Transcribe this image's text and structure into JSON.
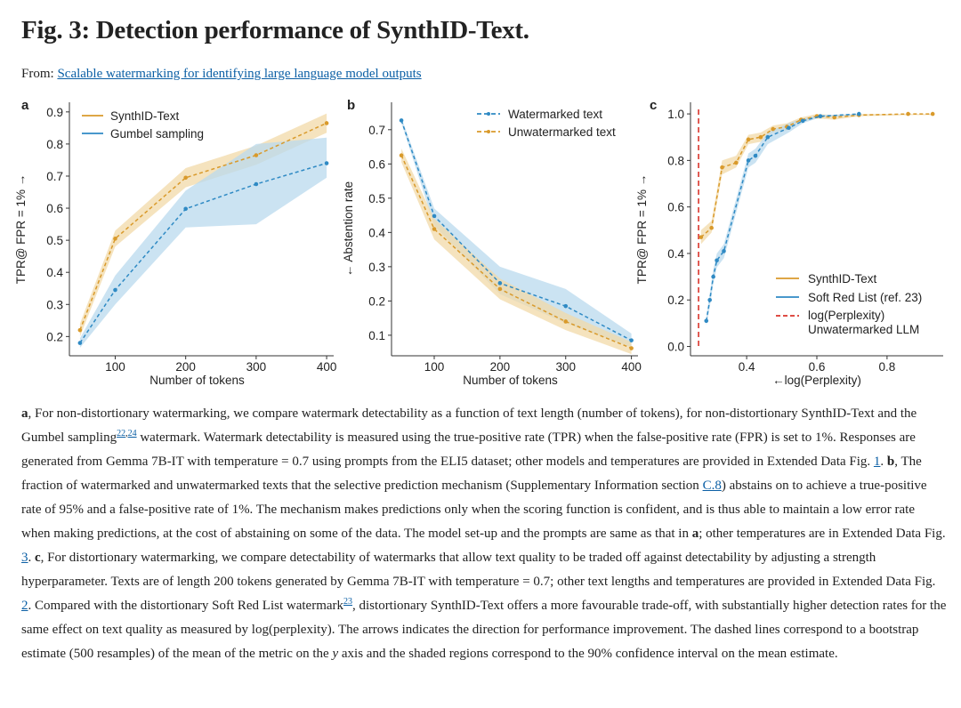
{
  "title": "Fig. 3: Detection performance of SynthID-Text.",
  "from": {
    "label": "From:",
    "link_text": "Scalable watermarking for identifying large language model outputs"
  },
  "colors": {
    "orange": "#d99a2b",
    "blue": "#2f8ac4",
    "orange_band": "#f2d9a8",
    "blue_band": "#b9d9ee",
    "red": "#d9342b",
    "link": "#0b5fa5"
  },
  "chart_data": [
    {
      "panel": "a",
      "type": "line",
      "xlabel": "Number of tokens",
      "ylabel": "TPR@ FPR = 1% →",
      "xlim": [
        35,
        410
      ],
      "ylim": [
        0.14,
        0.93
      ],
      "xticks": [
        100,
        200,
        300,
        400
      ],
      "yticks": [
        0.2,
        0.3,
        0.4,
        0.5,
        0.6,
        0.7,
        0.8,
        0.9
      ],
      "legend_position": "top-left",
      "series": [
        {
          "name": "SynthID-Text",
          "color": "orange",
          "x": [
            50,
            100,
            200,
            300,
            400
          ],
          "y": [
            0.22,
            0.505,
            0.695,
            0.765,
            0.865
          ],
          "lo": [
            0.2,
            0.48,
            0.665,
            0.735,
            0.835
          ],
          "hi": [
            0.24,
            0.53,
            0.725,
            0.795,
            0.895
          ]
        },
        {
          "name": "Gumbel sampling",
          "color": "blue",
          "x": [
            50,
            100,
            200,
            300,
            400
          ],
          "y": [
            0.18,
            0.345,
            0.598,
            0.675,
            0.74
          ],
          "lo": [
            0.165,
            0.3,
            0.54,
            0.55,
            0.695
          ],
          "hi": [
            0.195,
            0.39,
            0.655,
            0.8,
            0.82
          ]
        }
      ]
    },
    {
      "panel": "b",
      "type": "line",
      "xlabel": "Number of tokens",
      "ylabel": "← Abstention rate",
      "xlim": [
        35,
        410
      ],
      "ylim": [
        0.04,
        0.78
      ],
      "xticks": [
        100,
        200,
        300,
        400
      ],
      "yticks": [
        0.1,
        0.2,
        0.3,
        0.4,
        0.5,
        0.6,
        0.7
      ],
      "legend_position": "top-right",
      "series": [
        {
          "name": "Watermarked text",
          "color": "blue",
          "x": [
            50,
            100,
            200,
            300,
            400
          ],
          "y": [
            0.727,
            0.448,
            0.252,
            0.185,
            0.085
          ],
          "lo": [
            0.72,
            0.42,
            0.22,
            0.135,
            0.065
          ],
          "hi": [
            0.735,
            0.47,
            0.3,
            0.235,
            0.105
          ]
        },
        {
          "name": "Unwatermarked text",
          "color": "orange",
          "x": [
            50,
            100,
            200,
            300,
            400
          ],
          "y": [
            0.625,
            0.41,
            0.235,
            0.14,
            0.062
          ],
          "lo": [
            0.605,
            0.38,
            0.205,
            0.115,
            0.045
          ],
          "hi": [
            0.645,
            0.44,
            0.265,
            0.165,
            0.08
          ]
        }
      ]
    },
    {
      "panel": "c",
      "type": "line",
      "xlabel": "←log(Perplexity)",
      "ylabel": "TPR@ FPR = 1% →",
      "xlim": [
        0.24,
        0.96
      ],
      "ylim": [
        -0.04,
        1.05
      ],
      "xticks": [
        0.4,
        0.6,
        0.8
      ],
      "yticks": [
        0.0,
        0.2,
        0.4,
        0.6,
        0.8,
        1.0
      ],
      "legend_position": "bottom-right",
      "series": [
        {
          "name": "SynthID-Text",
          "color": "orange",
          "x": [
            0.27,
            0.3,
            0.33,
            0.37,
            0.405,
            0.44,
            0.475,
            0.515,
            0.555,
            0.6,
            0.65,
            0.72,
            0.86,
            0.93
          ],
          "y": [
            0.47,
            0.51,
            0.77,
            0.79,
            0.89,
            0.9,
            0.935,
            0.945,
            0.975,
            0.99,
            0.985,
            0.995,
            1.0,
            1.0
          ],
          "lo": [
            0.44,
            0.49,
            0.74,
            0.77,
            0.87,
            0.88,
            0.92,
            0.93,
            0.965,
            0.98,
            0.975,
            0.99,
            0.995,
            0.995
          ],
          "hi": [
            0.5,
            0.54,
            0.8,
            0.82,
            0.91,
            0.92,
            0.95,
            0.96,
            0.985,
            1.0,
            0.995,
            1.0,
            1.0,
            1.0
          ]
        },
        {
          "name": "Soft Red List (ref. 23)",
          "color": "blue",
          "x": [
            0.285,
            0.295,
            0.305,
            0.315,
            0.335,
            0.405,
            0.425,
            0.46,
            0.52,
            0.56,
            0.61,
            0.72
          ],
          "y": [
            0.11,
            0.2,
            0.3,
            0.37,
            0.41,
            0.8,
            0.82,
            0.9,
            0.94,
            0.97,
            0.99,
            1.0
          ],
          "lo": [
            0.09,
            0.17,
            0.27,
            0.34,
            0.38,
            0.77,
            0.79,
            0.87,
            0.92,
            0.96,
            0.985,
            0.995
          ],
          "hi": [
            0.13,
            0.23,
            0.33,
            0.4,
            0.44,
            0.83,
            0.85,
            0.92,
            0.96,
            0.98,
            0.995,
            1.0
          ]
        }
      ],
      "reference_line": {
        "name": "log(Perplexity) Unwatermarked LLM",
        "x": 0.263,
        "color": "red",
        "style": "dashed"
      }
    }
  ],
  "panel_labels": [
    "a",
    "b",
    "c"
  ],
  "caption_html": "<b>a</b>, For non-distortionary watermarking, we compare watermark detectability as a function of text length (number of tokens), for non-distortionary SynthID-Text and the Gumbel sampling<sup><a>22</a>,<a>24</a></sup> watermark. Watermark detectability is measured using the true-positive rate (TPR) when the false-positive rate (FPR) is set to 1%. Responses are generated from Gemma 7B-IT with temperature = 0.7 using prompts from the ELI5 dataset; other models and temperatures are provided in Extended Data Fig. <a>1</a>. <b>b</b>, The fraction of watermarked and unwatermarked texts that the selective prediction mechanism (Supplementary Information section <a>C.8</a>) abstains on to achieve a true-positive rate of 95% and a false-positive rate of 1%. The mechanism makes predictions only when the scoring function is confident, and is thus able to maintain a low error rate when making predictions, at the cost of abstaining on some of the data. The model set-up and the prompts are same as that in <b>a</b>; other temperatures are in Extended Data Fig. <a>3</a>. <b>c</b>, For distortionary watermarking, we compare detectability of watermarks that allow text quality to be traded off against detectability by adjusting a strength hyperparameter. Texts are of length 200 tokens generated by Gemma 7B-IT with temperature = 0.7; other text lengths and temperatures are provided in Extended Data Fig. <a>2</a>. Compared with the distortionary Soft Red List watermark<sup><a>23</a></sup>, distortionary SynthID-Text offers a more favourable trade-off, with substantially higher detection rates for the same effect on text quality as measured by log(perplexity). The arrows indicates the direction for performance improvement. The dashed lines correspond to a bootstrap estimate (500 resamples) of the mean of the metric on the <i>y</i> axis and the shaded regions correspond to the 90% confidence interval on the mean estimate."
}
